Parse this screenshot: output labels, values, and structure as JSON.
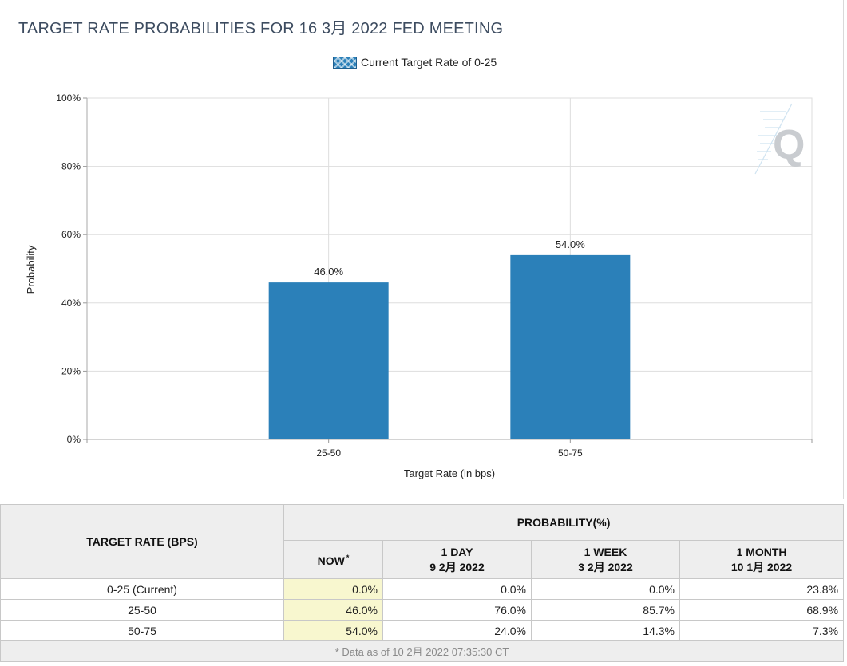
{
  "title": "TARGET RATE PROBABILITIES FOR 16 3月 2022 FED MEETING",
  "legend": {
    "label": "Current Target Rate of 0-25"
  },
  "colors": {
    "bar": "#2b80b9",
    "grid": "#dddddd",
    "now_cell": "#f8f7cf",
    "header_bg": "#eeeeee"
  },
  "chart_data": {
    "type": "bar",
    "title": "TARGET RATE PROBABILITIES FOR 16 3月 2022 FED MEETING",
    "categories": [
      "25-50",
      "50-75"
    ],
    "values": [
      46.0,
      54.0
    ],
    "data_labels": [
      "46.0%",
      "54.0%"
    ],
    "series": [
      {
        "name": "Current Target Rate of 0-25",
        "values": [
          46.0,
          54.0
        ]
      }
    ],
    "xlabel": "Target Rate (in bps)",
    "ylabel": "Probability",
    "ylim": [
      0,
      100
    ],
    "yticks": [
      "0%",
      "20%",
      "40%",
      "60%",
      "80%",
      "100%"
    ],
    "grid": true,
    "legend_position": "top-center"
  },
  "watermark": {
    "letter": "Q"
  },
  "table": {
    "rate_header": "TARGET RATE (BPS)",
    "probability_header": "PROBABILITY(%)",
    "columns": [
      {
        "line1": "NOW",
        "line2": "",
        "marker": "*"
      },
      {
        "line1": "1 DAY",
        "line2": "9 2月 2022",
        "marker": ""
      },
      {
        "line1": "1 WEEK",
        "line2": "3 2月 2022",
        "marker": ""
      },
      {
        "line1": "1 MONTH",
        "line2": "10 1月 2022",
        "marker": ""
      }
    ],
    "rows": [
      {
        "rate": "0-25 (Current)",
        "values": [
          "0.0%",
          "0.0%",
          "0.0%",
          "23.8%"
        ]
      },
      {
        "rate": "25-50",
        "values": [
          "46.0%",
          "76.0%",
          "85.7%",
          "68.9%"
        ]
      },
      {
        "rate": "50-75",
        "values": [
          "54.0%",
          "24.0%",
          "14.3%",
          "7.3%"
        ]
      }
    ],
    "footnote": "* Data as of 10 2月 2022 07:35:30 CT"
  }
}
